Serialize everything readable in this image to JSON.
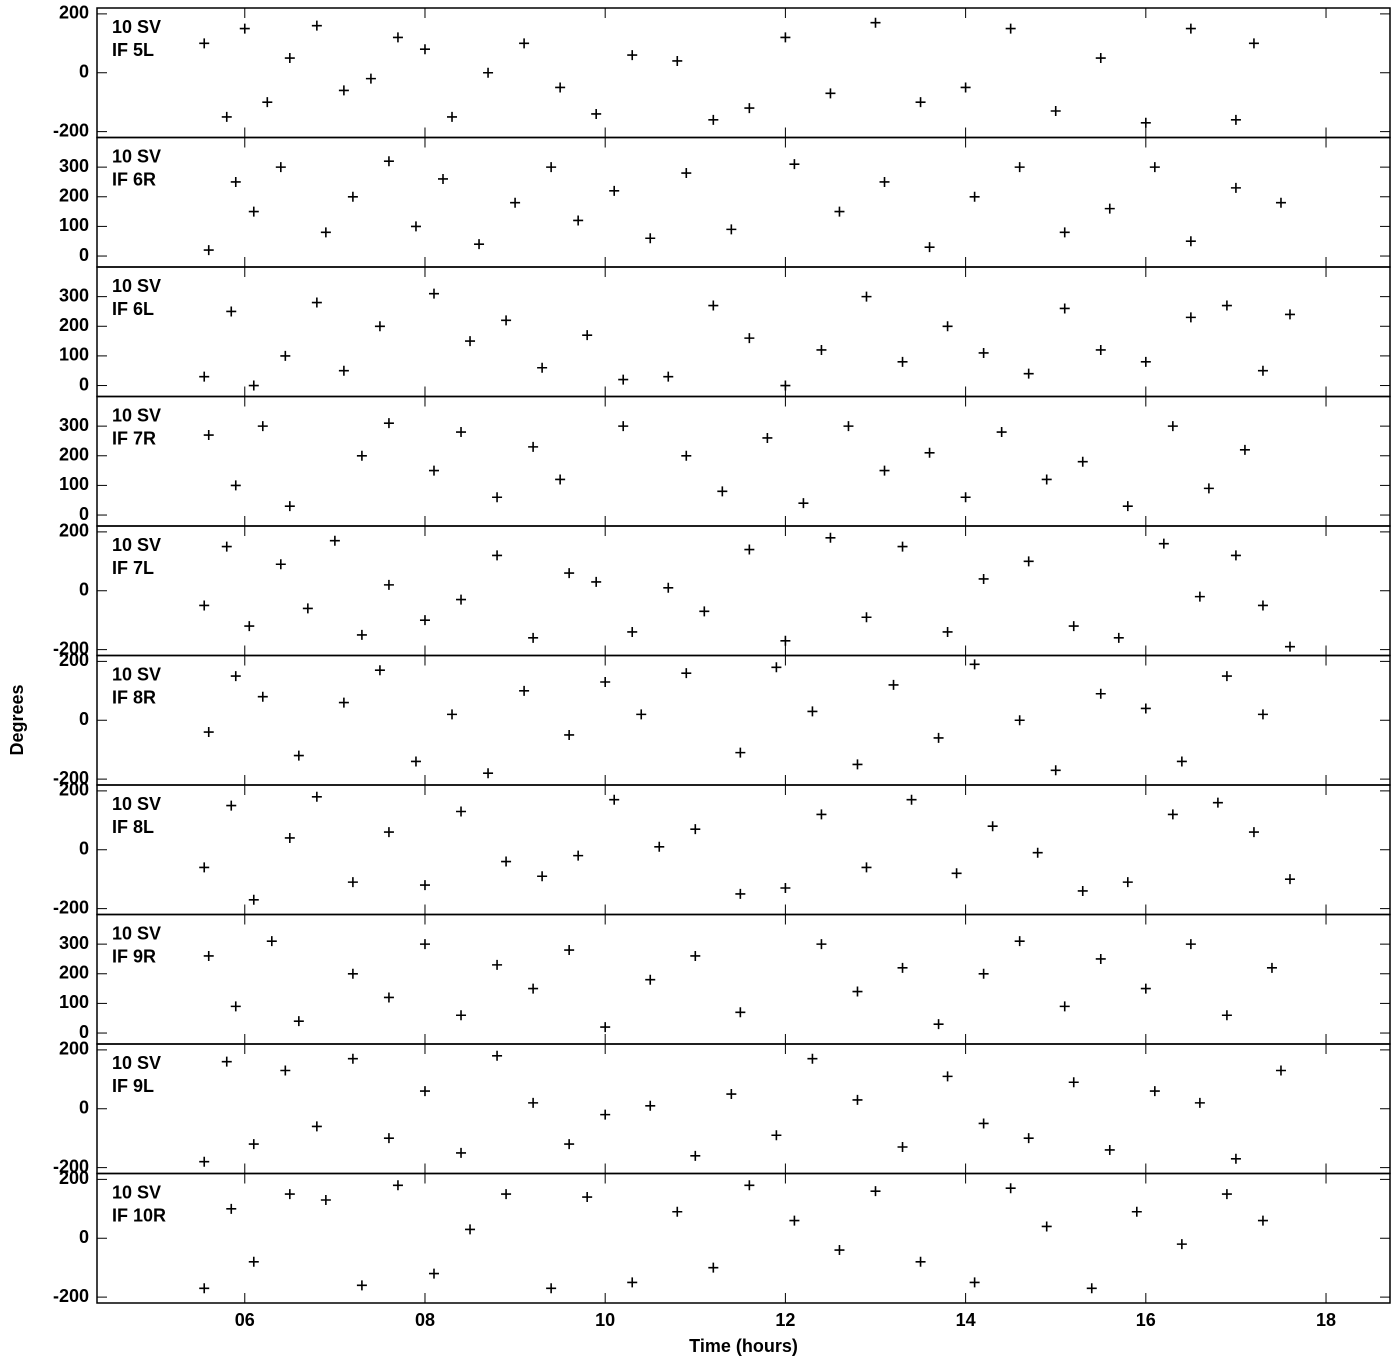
{
  "chart_data": [
    {
      "type": "scatter",
      "labels": [
        "10 SV",
        "IF 5L"
      ],
      "xlim": [
        4.36,
        18.71
      ],
      "ylim": [
        -220,
        220
      ],
      "yticks": [
        -200,
        0,
        200
      ],
      "x": [
        5.55,
        5.8,
        6.0,
        6.25,
        6.5,
        6.8,
        7.1,
        7.4,
        7.7,
        8.0,
        8.3,
        8.7,
        9.1,
        9.5,
        9.9,
        10.3,
        10.8,
        11.2,
        11.6,
        12.0,
        12.5,
        13.0,
        13.5,
        14.0,
        14.5,
        15.0,
        15.5,
        16.0,
        16.5,
        17.0,
        17.2
      ],
      "y": [
        100,
        -150,
        150,
        -100,
        50,
        160,
        -60,
        -20,
        120,
        80,
        -150,
        0,
        100,
        -50,
        -140,
        60,
        40,
        -160,
        -120,
        120,
        -70,
        170,
        -100,
        -50,
        150,
        -130,
        50,
        -170,
        150,
        -160,
        100
      ]
    },
    {
      "type": "scatter",
      "labels": [
        "10 SV",
        "IF 6R"
      ],
      "xlim": [
        4.36,
        18.71
      ],
      "ylim": [
        -37,
        400
      ],
      "yticks": [
        0,
        100,
        200,
        300
      ],
      "x": [
        5.6,
        5.9,
        6.1,
        6.4,
        6.9,
        7.2,
        7.6,
        7.9,
        8.2,
        8.6,
        9.0,
        9.4,
        9.7,
        10.1,
        10.5,
        10.9,
        11.4,
        12.1,
        12.6,
        13.1,
        13.6,
        14.1,
        14.6,
        15.1,
        15.6,
        16.1,
        16.5,
        17.0,
        17.5
      ],
      "y": [
        20,
        250,
        150,
        300,
        80,
        200,
        320,
        100,
        260,
        40,
        180,
        300,
        120,
        220,
        60,
        280,
        90,
        310,
        150,
        250,
        30,
        200,
        300,
        80,
        160,
        300,
        50,
        230,
        180
      ]
    },
    {
      "type": "scatter",
      "labels": [
        "10 SV",
        "IF 6L"
      ],
      "xlim": [
        4.36,
        18.71
      ],
      "ylim": [
        -37,
        400
      ],
      "yticks": [
        0,
        100,
        200,
        300
      ],
      "x": [
        5.55,
        5.85,
        6.1,
        6.45,
        6.8,
        7.1,
        7.5,
        8.1,
        8.5,
        8.9,
        9.3,
        9.8,
        10.2,
        10.7,
        11.2,
        11.6,
        12.0,
        12.4,
        12.9,
        13.3,
        13.8,
        14.2,
        14.7,
        15.1,
        15.5,
        16.0,
        16.5,
        16.9,
        17.3,
        17.6
      ],
      "y": [
        30,
        250,
        0,
        100,
        280,
        50,
        200,
        310,
        150,
        220,
        60,
        170,
        20,
        30,
        270,
        160,
        0,
        120,
        300,
        80,
        200,
        110,
        40,
        260,
        120,
        80,
        230,
        270,
        50,
        240
      ]
    },
    {
      "type": "scatter",
      "labels": [
        "10 SV",
        "IF 7R"
      ],
      "xlim": [
        4.36,
        18.71
      ],
      "ylim": [
        -37,
        400
      ],
      "yticks": [
        0,
        100,
        200,
        300
      ],
      "x": [
        5.6,
        5.9,
        6.2,
        6.5,
        7.3,
        7.6,
        8.1,
        8.4,
        8.8,
        9.2,
        9.5,
        10.2,
        10.9,
        11.3,
        11.8,
        12.2,
        12.7,
        13.1,
        13.6,
        14.0,
        14.4,
        14.9,
        15.3,
        15.8,
        16.3,
        16.7,
        17.1
      ],
      "y": [
        270,
        100,
        300,
        30,
        200,
        310,
        150,
        280,
        60,
        230,
        120,
        300,
        200,
        80,
        260,
        40,
        300,
        150,
        210,
        60,
        280,
        120,
        180,
        30,
        300,
        90,
        220
      ]
    },
    {
      "type": "scatter",
      "labels": [
        "10 SV",
        "IF 7L"
      ],
      "xlim": [
        4.36,
        18.71
      ],
      "ylim": [
        -220,
        220
      ],
      "yticks": [
        -200,
        0,
        200
      ],
      "x": [
        5.55,
        5.8,
        6.05,
        6.4,
        6.7,
        7.0,
        7.3,
        7.6,
        8.0,
        8.4,
        8.8,
        9.2,
        9.6,
        9.9,
        10.3,
        10.7,
        11.1,
        11.6,
        12.0,
        12.5,
        12.9,
        13.3,
        13.8,
        14.2,
        14.7,
        15.2,
        15.7,
        16.2,
        16.6,
        17.0,
        17.3,
        17.6
      ],
      "y": [
        -50,
        150,
        -120,
        90,
        -60,
        170,
        -150,
        20,
        -100,
        -30,
        120,
        -160,
        60,
        30,
        -140,
        10,
        -70,
        140,
        -170,
        180,
        -90,
        150,
        -140,
        40,
        100,
        -120,
        -160,
        160,
        -20,
        120,
        -50,
        -190
      ]
    },
    {
      "type": "scatter",
      "labels": [
        "10 SV",
        "IF 8R"
      ],
      "xlim": [
        4.36,
        18.71
      ],
      "ylim": [
        -220,
        220
      ],
      "yticks": [
        -200,
        0,
        200
      ],
      "x": [
        5.6,
        5.9,
        6.2,
        6.6,
        7.1,
        7.5,
        7.9,
        8.3,
        8.7,
        9.1,
        9.6,
        10.0,
        10.4,
        10.9,
        11.5,
        11.9,
        12.3,
        12.8,
        13.2,
        13.7,
        14.1,
        14.6,
        15.0,
        15.5,
        16.0,
        16.4,
        16.9,
        17.3
      ],
      "y": [
        -40,
        150,
        80,
        -120,
        60,
        170,
        -140,
        20,
        -180,
        100,
        -50,
        130,
        20,
        160,
        -110,
        180,
        30,
        -150,
        120,
        -60,
        190,
        0,
        -170,
        90,
        40,
        -140,
        150,
        20
      ]
    },
    {
      "type": "scatter",
      "labels": [
        "10 SV",
        "IF 8L"
      ],
      "xlim": [
        4.36,
        18.71
      ],
      "ylim": [
        -220,
        220
      ],
      "yticks": [
        -200,
        0,
        200
      ],
      "x": [
        5.55,
        5.85,
        6.1,
        6.5,
        6.8,
        7.2,
        7.6,
        8.0,
        8.4,
        8.9,
        9.3,
        9.7,
        10.1,
        10.6,
        11.0,
        11.5,
        12.0,
        12.4,
        12.9,
        13.4,
        13.9,
        14.3,
        14.8,
        15.3,
        15.8,
        16.3,
        16.8,
        17.2,
        17.6
      ],
      "y": [
        -60,
        150,
        -170,
        40,
        180,
        -110,
        60,
        -120,
        130,
        -40,
        -90,
        -20,
        170,
        10,
        70,
        -150,
        -130,
        120,
        -60,
        170,
        -80,
        80,
        -10,
        -140,
        -110,
        120,
        160,
        60,
        -100
      ]
    },
    {
      "type": "scatter",
      "labels": [
        "10 SV",
        "IF 9R"
      ],
      "xlim": [
        4.36,
        18.71
      ],
      "ylim": [
        -37,
        400
      ],
      "yticks": [
        0,
        100,
        200,
        300
      ],
      "x": [
        5.6,
        5.9,
        6.3,
        6.6,
        7.2,
        7.6,
        8.0,
        8.4,
        8.8,
        9.2,
        9.6,
        10.0,
        10.5,
        11.0,
        11.5,
        12.4,
        12.8,
        13.3,
        13.7,
        14.2,
        14.6,
        15.1,
        15.5,
        16.0,
        16.5,
        16.9,
        17.4
      ],
      "y": [
        260,
        90,
        310,
        40,
        200,
        120,
        300,
        60,
        230,
        150,
        280,
        20,
        180,
        260,
        70,
        300,
        140,
        220,
        30,
        200,
        310,
        90,
        250,
        150,
        300,
        60,
        220
      ]
    },
    {
      "type": "scatter",
      "labels": [
        "10 SV",
        "IF 9L"
      ],
      "xlim": [
        4.36,
        18.71
      ],
      "ylim": [
        -220,
        220
      ],
      "yticks": [
        -200,
        0,
        200
      ],
      "x": [
        5.55,
        5.8,
        6.1,
        6.45,
        6.8,
        7.2,
        7.6,
        8.0,
        8.4,
        8.8,
        9.2,
        9.6,
        10.0,
        10.5,
        11.0,
        11.4,
        11.9,
        12.3,
        12.8,
        13.3,
        13.8,
        14.2,
        14.7,
        15.2,
        15.6,
        16.1,
        16.6,
        17.0,
        17.5
      ],
      "y": [
        -180,
        160,
        -120,
        130,
        -60,
        170,
        -100,
        60,
        -150,
        180,
        20,
        -120,
        -20,
        10,
        -160,
        50,
        -90,
        170,
        30,
        -130,
        110,
        -50,
        -100,
        90,
        -140,
        60,
        20,
        -170,
        130
      ]
    },
    {
      "type": "scatter",
      "labels": [
        "10 SV",
        "IF 10R"
      ],
      "xlim": [
        4.36,
        18.71
      ],
      "ylim": [
        -220,
        220
      ],
      "yticks": [
        -200,
        0,
        200
      ],
      "x": [
        5.55,
        5.85,
        6.1,
        6.5,
        6.9,
        7.3,
        7.7,
        8.1,
        8.5,
        8.9,
        9.4,
        9.8,
        10.3,
        10.8,
        11.2,
        11.6,
        12.1,
        12.6,
        13.0,
        13.5,
        14.1,
        14.5,
        14.9,
        15.4,
        15.9,
        16.4,
        16.9,
        17.3
      ],
      "xlabel": "Time (hours)",
      "ylabel": "Degrees",
      "xticks": [
        {
          "value": 6,
          "label": "06"
        },
        {
          "value": 8,
          "label": "08"
        },
        10,
        12,
        14,
        16,
        18
      ],
      "y": [
        -170,
        100,
        -80,
        150,
        130,
        -160,
        180,
        -120,
        30,
        150,
        -170,
        140,
        -150,
        90,
        -100,
        180,
        60,
        -40,
        160,
        -80,
        -150,
        170,
        40,
        -170,
        90,
        -20,
        150,
        60
      ]
    }
  ]
}
